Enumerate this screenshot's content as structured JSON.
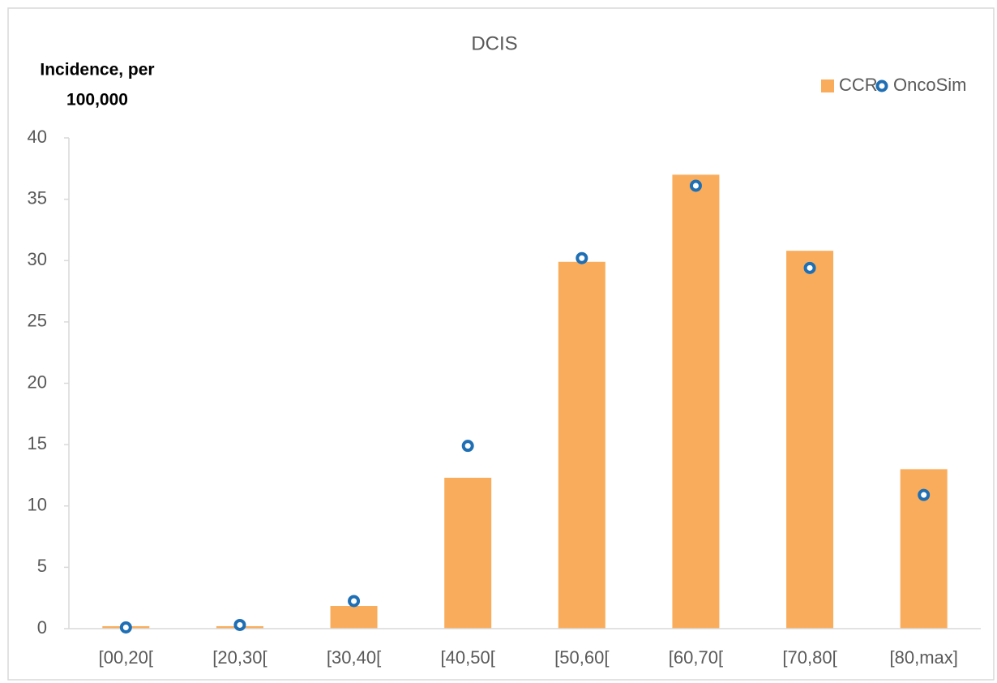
{
  "chart_data": {
    "type": "bar",
    "title": "DCIS",
    "y_label": [
      "Incidence, per",
      "100,000"
    ],
    "categories": [
      "[00,20[",
      "[20,30[",
      "[30,40[",
      "[40,50[",
      "[50,60[",
      "[60,70[",
      "[70,80[",
      "[80,max]"
    ],
    "series": [
      {
        "name": "CCR",
        "type": "bar",
        "color": "#f9ad5c",
        "values": [
          0.2,
          0.2,
          1.85,
          12.3,
          29.9,
          37.0,
          30.8,
          13.0
        ]
      },
      {
        "name": "OncoSim",
        "type": "scatter",
        "color": "#1f6fb4",
        "values": [
          0.1,
          0.3,
          2.25,
          14.9,
          30.2,
          36.1,
          29.4,
          10.9
        ]
      }
    ],
    "ylim": [
      0,
      40
    ],
    "yticks": [
      0,
      5,
      10,
      15,
      20,
      25,
      30,
      35,
      40
    ],
    "grid": false,
    "legend": "top-right"
  }
}
